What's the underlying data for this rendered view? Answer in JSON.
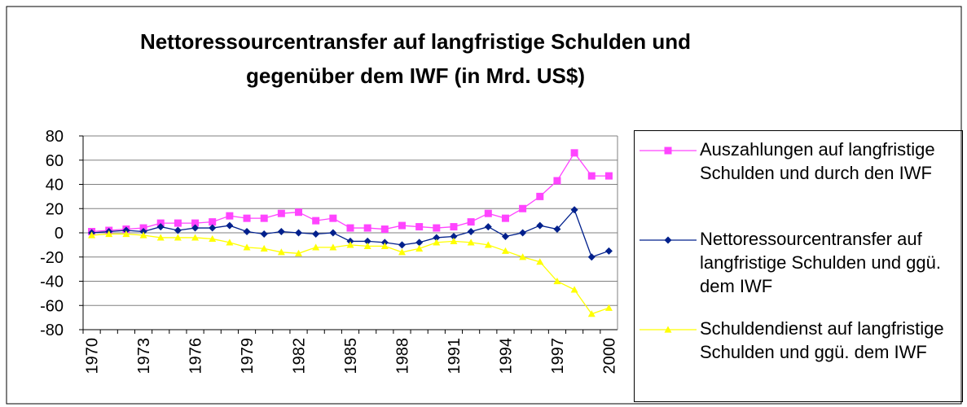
{
  "chart_data": {
    "type": "line",
    "title": "Nettoressourcentransfer auf langfristige Schulden und gegenüber dem IWF (in Mrd. US$)",
    "categories": [
      "1970",
      null,
      null,
      "1973",
      null,
      null,
      "1976",
      null,
      null,
      "1979",
      null,
      null,
      "1982",
      null,
      null,
      "1985",
      null,
      null,
      "1988",
      null,
      null,
      "1991",
      null,
      null,
      "1994",
      null,
      null,
      "1997",
      null,
      null,
      "2000"
    ],
    "ylim": [
      -80,
      80
    ],
    "yticks": [
      -80,
      -60,
      -40,
      -20,
      0,
      20,
      40,
      60,
      80
    ],
    "grid": true,
    "legend": "right",
    "series": [
      {
        "name": "Auszahlungen auf langfristige Schulden und durch den IWF",
        "color": "#ff44ff",
        "marker": "square",
        "values": [
          1,
          2,
          3,
          4,
          8,
          8,
          8,
          9,
          14,
          12,
          12,
          16,
          17,
          10,
          12,
          4,
          4,
          3,
          6,
          5,
          4,
          5,
          9,
          16,
          12,
          20,
          30,
          43,
          66,
          47,
          47
        ]
      },
      {
        "name": "Nettoressourcentransfer auf langfristige Schulden und ggü. dem IWF",
        "color": "#00208c",
        "marker": "diamond",
        "values": [
          0,
          1,
          2,
          1,
          5,
          2,
          4,
          4,
          6,
          1,
          -1,
          1,
          0,
          -1,
          0,
          -7,
          -7,
          -8,
          -10,
          -8,
          -4,
          -3,
          1,
          5,
          -3,
          0,
          6,
          3,
          19,
          -20,
          -15
        ]
      },
      {
        "name": "Schuldendienst auf langfristige Schulden und ggü. dem IWF",
        "color": "#ffff00",
        "marker": "triangle",
        "values": [
          -2,
          -1,
          -1,
          -2,
          -4,
          -4,
          -4,
          -5,
          -8,
          -12,
          -13,
          -16,
          -17,
          -12,
          -12,
          -10,
          -11,
          -11,
          -16,
          -13,
          -8,
          -7,
          -8,
          -10,
          -15,
          -20,
          -24,
          -40,
          -47,
          -67,
          -62
        ]
      }
    ]
  }
}
